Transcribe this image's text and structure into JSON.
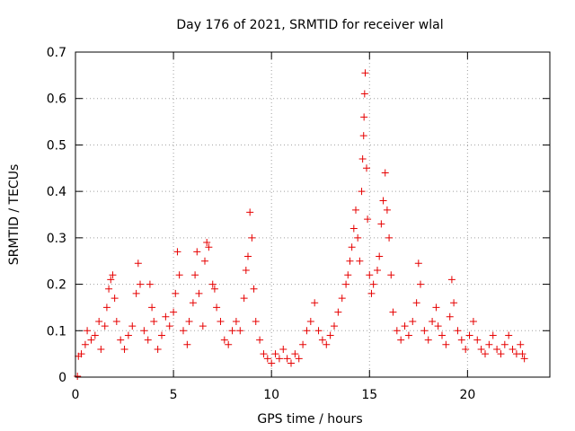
{
  "chart_data": {
    "type": "scatter",
    "title": "Day 176 of 2021, SRMTID for receiver wlal",
    "xlabel": "GPS time / hours",
    "ylabel": "SRMTID / TECUs",
    "xlim": [
      0,
      24.2
    ],
    "ylim": [
      0,
      0.7
    ],
    "xticks": [
      0,
      5,
      10,
      15,
      20
    ],
    "xtick_labels": [
      "0",
      "5",
      "10",
      "15",
      "20"
    ],
    "yticks": [
      0,
      0.1,
      0.2,
      0.3,
      0.4,
      0.5,
      0.6,
      0.7
    ],
    "ytick_labels": [
      "0",
      "0.1",
      "0.2",
      "0.3",
      "0.4",
      "0.5",
      "0.6",
      "0.7"
    ],
    "grid": true,
    "marker": "+",
    "series": [
      {
        "name": "SRMTID",
        "color": "#e60000",
        "points": [
          [
            0.1,
            0.002
          ],
          [
            0.15,
            0.045
          ],
          [
            0.3,
            0.05
          ],
          [
            0.5,
            0.07
          ],
          [
            0.6,
            0.1
          ],
          [
            0.8,
            0.08
          ],
          [
            1.0,
            0.09
          ],
          [
            1.2,
            0.12
          ],
          [
            1.3,
            0.06
          ],
          [
            1.5,
            0.11
          ],
          [
            1.6,
            0.15
          ],
          [
            1.7,
            0.19
          ],
          [
            1.8,
            0.21
          ],
          [
            1.9,
            0.22
          ],
          [
            2.0,
            0.17
          ],
          [
            2.1,
            0.12
          ],
          [
            2.3,
            0.08
          ],
          [
            2.5,
            0.06
          ],
          [
            2.7,
            0.09
          ],
          [
            2.9,
            0.11
          ],
          [
            3.1,
            0.18
          ],
          [
            3.2,
            0.245
          ],
          [
            3.3,
            0.2
          ],
          [
            3.5,
            0.1
          ],
          [
            3.7,
            0.08
          ],
          [
            3.8,
            0.2
          ],
          [
            3.9,
            0.15
          ],
          [
            4.0,
            0.12
          ],
          [
            4.2,
            0.06
          ],
          [
            4.4,
            0.09
          ],
          [
            4.6,
            0.13
          ],
          [
            4.8,
            0.11
          ],
          [
            5.0,
            0.14
          ],
          [
            5.1,
            0.18
          ],
          [
            5.2,
            0.27
          ],
          [
            5.3,
            0.22
          ],
          [
            5.5,
            0.1
          ],
          [
            5.7,
            0.07
          ],
          [
            5.8,
            0.12
          ],
          [
            6.0,
            0.16
          ],
          [
            6.1,
            0.22
          ],
          [
            6.2,
            0.27
          ],
          [
            6.3,
            0.18
          ],
          [
            6.5,
            0.11
          ],
          [
            6.6,
            0.25
          ],
          [
            6.7,
            0.29
          ],
          [
            6.8,
            0.28
          ],
          [
            7.0,
            0.2
          ],
          [
            7.1,
            0.19
          ],
          [
            7.2,
            0.15
          ],
          [
            7.4,
            0.12
          ],
          [
            7.6,
            0.08
          ],
          [
            7.8,
            0.07
          ],
          [
            8.0,
            0.1
          ],
          [
            8.2,
            0.12
          ],
          [
            8.4,
            0.1
          ],
          [
            8.6,
            0.17
          ],
          [
            8.7,
            0.23
          ],
          [
            8.8,
            0.26
          ],
          [
            8.9,
            0.355
          ],
          [
            9.0,
            0.3
          ],
          [
            9.1,
            0.19
          ],
          [
            9.2,
            0.12
          ],
          [
            9.4,
            0.08
          ],
          [
            9.6,
            0.05
          ],
          [
            9.8,
            0.04
          ],
          [
            10.0,
            0.03
          ],
          [
            10.2,
            0.05
          ],
          [
            10.4,
            0.04
          ],
          [
            10.6,
            0.06
          ],
          [
            10.8,
            0.04
          ],
          [
            11.0,
            0.03
          ],
          [
            11.2,
            0.05
          ],
          [
            11.4,
            0.04
          ],
          [
            11.6,
            0.07
          ],
          [
            11.8,
            0.1
          ],
          [
            12.0,
            0.12
          ],
          [
            12.2,
            0.16
          ],
          [
            12.4,
            0.1
          ],
          [
            12.6,
            0.08
          ],
          [
            12.8,
            0.07
          ],
          [
            13.0,
            0.09
          ],
          [
            13.2,
            0.11
          ],
          [
            13.4,
            0.14
          ],
          [
            13.6,
            0.17
          ],
          [
            13.8,
            0.2
          ],
          [
            13.9,
            0.22
          ],
          [
            14.0,
            0.25
          ],
          [
            14.1,
            0.28
          ],
          [
            14.2,
            0.32
          ],
          [
            14.3,
            0.36
          ],
          [
            14.4,
            0.3
          ],
          [
            14.5,
            0.25
          ],
          [
            14.6,
            0.4
          ],
          [
            14.65,
            0.47
          ],
          [
            14.7,
            0.52
          ],
          [
            14.72,
            0.56
          ],
          [
            14.75,
            0.61
          ],
          [
            14.78,
            0.655
          ],
          [
            14.85,
            0.45
          ],
          [
            14.9,
            0.34
          ],
          [
            15.0,
            0.22
          ],
          [
            15.1,
            0.18
          ],
          [
            15.2,
            0.2
          ],
          [
            15.4,
            0.23
          ],
          [
            15.5,
            0.26
          ],
          [
            15.6,
            0.33
          ],
          [
            15.7,
            0.38
          ],
          [
            15.8,
            0.44
          ],
          [
            15.9,
            0.36
          ],
          [
            16.0,
            0.3
          ],
          [
            16.1,
            0.22
          ],
          [
            16.2,
            0.14
          ],
          [
            16.4,
            0.1
          ],
          [
            16.6,
            0.08
          ],
          [
            16.8,
            0.11
          ],
          [
            17.0,
            0.09
          ],
          [
            17.2,
            0.12
          ],
          [
            17.4,
            0.16
          ],
          [
            17.5,
            0.245
          ],
          [
            17.6,
            0.2
          ],
          [
            17.8,
            0.1
          ],
          [
            18.0,
            0.08
          ],
          [
            18.2,
            0.12
          ],
          [
            18.4,
            0.15
          ],
          [
            18.5,
            0.11
          ],
          [
            18.7,
            0.09
          ],
          [
            18.9,
            0.07
          ],
          [
            19.1,
            0.13
          ],
          [
            19.2,
            0.21
          ],
          [
            19.3,
            0.16
          ],
          [
            19.5,
            0.1
          ],
          [
            19.7,
            0.08
          ],
          [
            19.9,
            0.06
          ],
          [
            20.1,
            0.09
          ],
          [
            20.3,
            0.12
          ],
          [
            20.5,
            0.08
          ],
          [
            20.7,
            0.06
          ],
          [
            20.9,
            0.05
          ],
          [
            21.1,
            0.07
          ],
          [
            21.3,
            0.09
          ],
          [
            21.5,
            0.06
          ],
          [
            21.7,
            0.05
          ],
          [
            21.9,
            0.07
          ],
          [
            22.1,
            0.09
          ],
          [
            22.3,
            0.06
          ],
          [
            22.5,
            0.05
          ],
          [
            22.7,
            0.07
          ],
          [
            22.8,
            0.05
          ],
          [
            22.9,
            0.04
          ]
        ]
      }
    ]
  }
}
